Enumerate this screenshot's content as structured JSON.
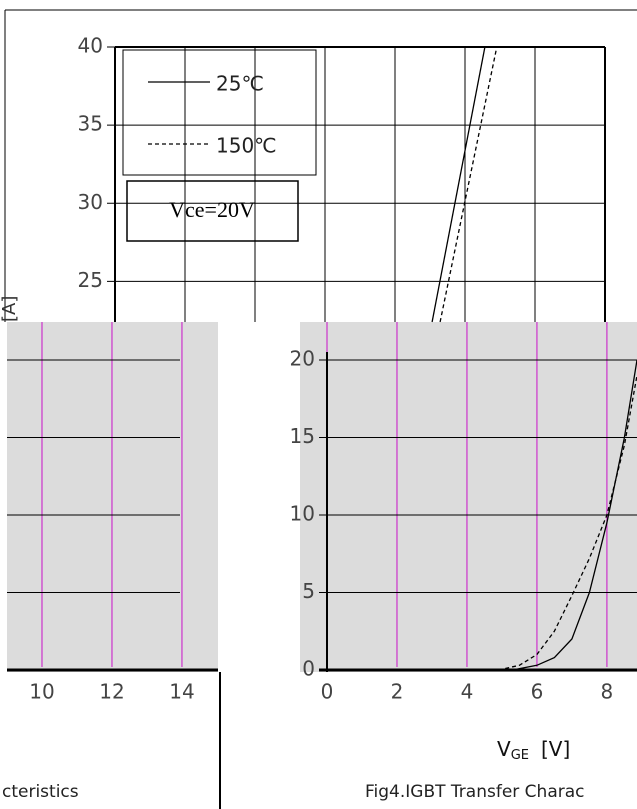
{
  "chart_data": [
    {
      "type": "line",
      "ylabel": "[A]",
      "annotation": "Vce=20V",
      "xlim": [
        0,
        14
      ],
      "ylim": [
        22.4,
        40
      ],
      "xgrid": [
        2,
        4,
        6,
        8,
        10,
        12
      ],
      "yticks": [
        25,
        30,
        35,
        40
      ],
      "grid_color": "#000000",
      "series": [
        {
          "name": "25℃",
          "color": "#000000",
          "dashed": false,
          "x": [
            9.06,
            10.57
          ],
          "values": [
            22.4,
            40
          ]
        },
        {
          "name": "150℃",
          "color": "#000000",
          "dashed": true,
          "x": [
            9.29,
            10.91
          ],
          "values": [
            22.4,
            40
          ]
        }
      ]
    },
    {
      "type": "line",
      "caption": "cteristics",
      "xlim": [
        9,
        15.03
      ],
      "ylim": [
        -0.13,
        22.45
      ],
      "xticks": [
        10,
        12,
        14
      ],
      "ygrid": [
        0,
        5,
        10,
        15,
        20
      ],
      "grid_color": "#000000",
      "vgrid_color": "#cc33cc",
      "series": []
    },
    {
      "type": "line",
      "caption": "Fig4.IGBT Transfer Charac",
      "xlabel": {
        "main": "V",
        "sub": "GE",
        "unit": "[V]"
      },
      "xlim": [
        0,
        8.86
      ],
      "ylim": [
        -0.13,
        22.45
      ],
      "xticks": [
        0,
        2,
        4,
        6,
        8
      ],
      "yticks": [
        0,
        5,
        10,
        15,
        20
      ],
      "grid_color": "#000000",
      "vgrid_color": "#cc33cc",
      "series": [
        {
          "name": "25℃",
          "color": "#000000",
          "dashed": false,
          "x": [
            5.3,
            6,
            6.5,
            7,
            7.5,
            8,
            8.5,
            8.86
          ],
          "values": [
            0,
            0.3,
            0.8,
            2,
            5,
            9.5,
            15,
            20
          ]
        },
        {
          "name": "150℃",
          "color": "#000000",
          "dashed": true,
          "x": [
            4.9,
            5.5,
            6,
            6.5,
            7,
            7.5,
            8,
            8.5,
            8.86
          ],
          "values": [
            0,
            0.3,
            1,
            2.5,
            4.8,
            7.2,
            10,
            14.5,
            19
          ]
        }
      ]
    }
  ]
}
